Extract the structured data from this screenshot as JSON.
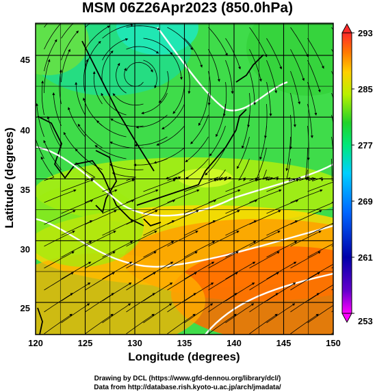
{
  "title": "MSM 06Z26Apr2023 (850.0hPa)",
  "xlabel": "Longitude (degrees)",
  "ylabel": "Latitude  (degrees)",
  "credit_line1": "Drawing by DCL (https://www.gfd-dennou.org/library/dcl/)",
  "credit_line2": "Data from http://database.rish.kyoto-u.ac.jp/arch/jmadata/",
  "x_ticks": [
    "120",
    "125",
    "130",
    "135",
    "140",
    "145",
    "150"
  ],
  "y_ticks": [
    "25",
    "30",
    "35",
    "40",
    "45"
  ],
  "colorbar": {
    "labels": [
      "293",
      "285",
      "277",
      "269",
      "261",
      "253"
    ],
    "colors": [
      "#ff00ff",
      "#0000aa",
      "#0055ff",
      "#00c8ff",
      "#00e87a",
      "#22d22a",
      "#b8f000",
      "#ffd000",
      "#ff7a00",
      "#ff3300",
      "#ff2a2a"
    ]
  },
  "map_extent": {
    "lon": [
      120,
      150
    ],
    "lat": [
      22.4,
      47.6
    ]
  }
}
